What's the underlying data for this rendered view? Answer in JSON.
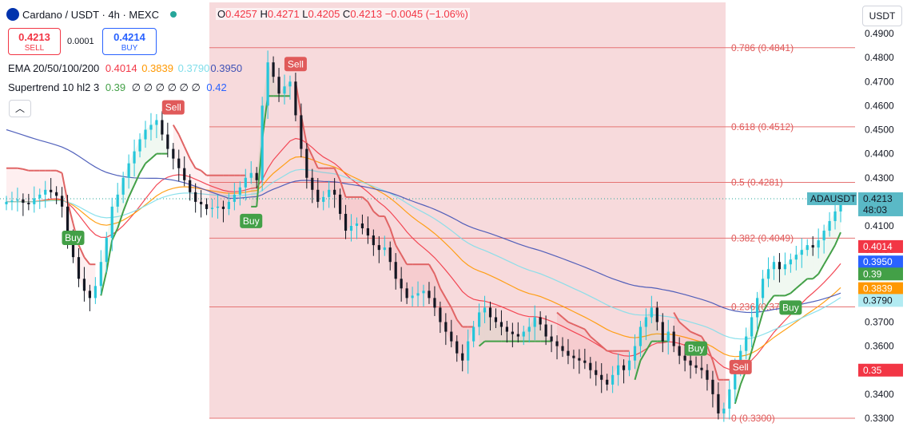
{
  "header": {
    "symbol": "Cardano / USDT · 4h · MEXC",
    "ohlc": {
      "o_label": "O",
      "o": "0.4257",
      "h_label": "H",
      "h": "0.4271",
      "l_label": "L",
      "l": "0.4205",
      "c_label": "C",
      "c": "0.4213",
      "change": "−0.0045 (−1.06%)"
    },
    "sell_price": "0.4213",
    "sell_label": "SELL",
    "spread": "0.0001",
    "buy_price": "0.4214",
    "buy_label": "BUY",
    "ema_label": "EMA 20/50/100/200",
    "ema_values": [
      "0.4014",
      "0.3839",
      "0.3790",
      "0.3950"
    ],
    "supertrend_label": "Supertrend 10 hl2 3",
    "supertrend_value": "0.39",
    "supertrend_dots": "∅ ∅ ∅ ∅ ∅ ∅",
    "supertrend_value2": "0.42",
    "currency": "USDT"
  },
  "colors": {
    "up": "#26a69a",
    "down": "#131722",
    "bull_candle": "#26c6da",
    "red": "#f23645",
    "green": "#43a047",
    "ema20": "#f23645",
    "ema50": "#ff9800",
    "ema100": "#80deea",
    "ema200": "#3f51b5",
    "fib_fill": "#f6d3d6"
  },
  "chart_data": {
    "type": "candlestick",
    "y_axis": {
      "ticks": [
        "0.4900",
        "0.4800",
        "0.4700",
        "0.4600",
        "0.4500",
        "0.4400",
        "0.4300",
        "0.4200",
        "0.4100",
        "0.4000",
        "0.3900",
        "0.3800",
        "0.3700",
        "0.3600",
        "0.3500",
        "0.3400",
        "0.3300"
      ],
      "range": [
        0.3265,
        0.4945
      ]
    },
    "fibonacci": [
      {
        "ratio": "0.786",
        "price": 0.4841,
        "label": "0.786 (0.4841)"
      },
      {
        "ratio": "0.618",
        "price": 0.4512,
        "label": "0.618 (0.4512)"
      },
      {
        "ratio": "0.5",
        "price": 0.4281,
        "label": "0.5 (0.4281)"
      },
      {
        "ratio": "0.382",
        "price": 0.4049,
        "label": "0.382 (0.4049)"
      },
      {
        "ratio": "0.236",
        "price": 0.3763,
        "label": "0.236 (0.3763)"
      },
      {
        "ratio": "0",
        "price": 0.33,
        "label": "0 (0.3300)"
      }
    ],
    "close_series": [
      0.42,
      0.4205,
      0.421,
      0.4196,
      0.419,
      0.4215,
      0.423,
      0.425,
      0.424,
      0.4225,
      0.418,
      0.406,
      0.397,
      0.388,
      0.383,
      0.38,
      0.385,
      0.395,
      0.405,
      0.418,
      0.423,
      0.43,
      0.436,
      0.441,
      0.446,
      0.45,
      0.452,
      0.454,
      0.448,
      0.442,
      0.438,
      0.434,
      0.429,
      0.424,
      0.42,
      0.419,
      0.417,
      0.4175,
      0.418,
      0.417,
      0.42,
      0.423,
      0.426,
      0.43,
      0.432,
      0.429,
      0.46,
      0.478,
      0.472,
      0.465,
      0.468,
      0.47,
      0.456,
      0.442,
      0.43,
      0.425,
      0.42,
      0.422,
      0.425,
      0.423,
      0.415,
      0.408,
      0.41,
      0.411,
      0.409,
      0.406,
      0.402,
      0.4,
      0.401,
      0.395,
      0.388,
      0.384,
      0.38,
      0.381,
      0.382,
      0.383,
      0.38,
      0.376,
      0.37,
      0.366,
      0.362,
      0.357,
      0.354,
      0.362,
      0.368,
      0.374,
      0.376,
      0.372,
      0.37,
      0.368,
      0.366,
      0.365,
      0.364,
      0.366,
      0.368,
      0.372,
      0.369,
      0.364,
      0.362,
      0.36,
      0.358,
      0.356,
      0.355,
      0.354,
      0.353,
      0.35,
      0.348,
      0.346,
      0.344,
      0.348,
      0.352,
      0.35,
      0.354,
      0.36,
      0.368,
      0.372,
      0.376,
      0.37,
      0.362,
      0.366,
      0.36,
      0.356,
      0.354,
      0.352,
      0.351,
      0.35,
      0.346,
      0.34,
      0.332,
      0.334,
      0.342,
      0.35,
      0.358,
      0.364,
      0.372,
      0.38,
      0.388,
      0.392,
      0.395,
      0.392,
      0.394,
      0.396,
      0.398,
      0.4,
      0.402,
      0.401,
      0.404,
      0.408,
      0.412,
      0.416,
      0.4213
    ],
    "current_price": 0.4213,
    "countdown": "48:03",
    "symbol_tag": "ADAUSDT",
    "price_tags": [
      {
        "value": 0.42,
        "label": "0.42",
        "color": "#2962ff"
      },
      {
        "value": 0.4014,
        "label": "0.4014",
        "color": "#f23645"
      },
      {
        "value": 0.395,
        "label": "0.3950",
        "color": "#2962ff"
      },
      {
        "value": 0.39,
        "label": "0.39",
        "color": "#43a047"
      },
      {
        "value": 0.3839,
        "label": "0.3839",
        "color": "#ff9800"
      },
      {
        "value": 0.379,
        "label": "0.3790",
        "color": "#b2ebf2"
      },
      {
        "value": 0.35,
        "label": "0.35",
        "color": "#f23645"
      }
    ],
    "signals": [
      {
        "type": "Buy",
        "index": 12
      },
      {
        "type": "Sell",
        "index": 30
      },
      {
        "type": "Buy",
        "index": 44
      },
      {
        "type": "Sell",
        "index": 52
      },
      {
        "type": "Buy",
        "index": 124
      },
      {
        "type": "Sell",
        "index": 132
      },
      {
        "type": "Buy",
        "index": 141
      }
    ]
  }
}
